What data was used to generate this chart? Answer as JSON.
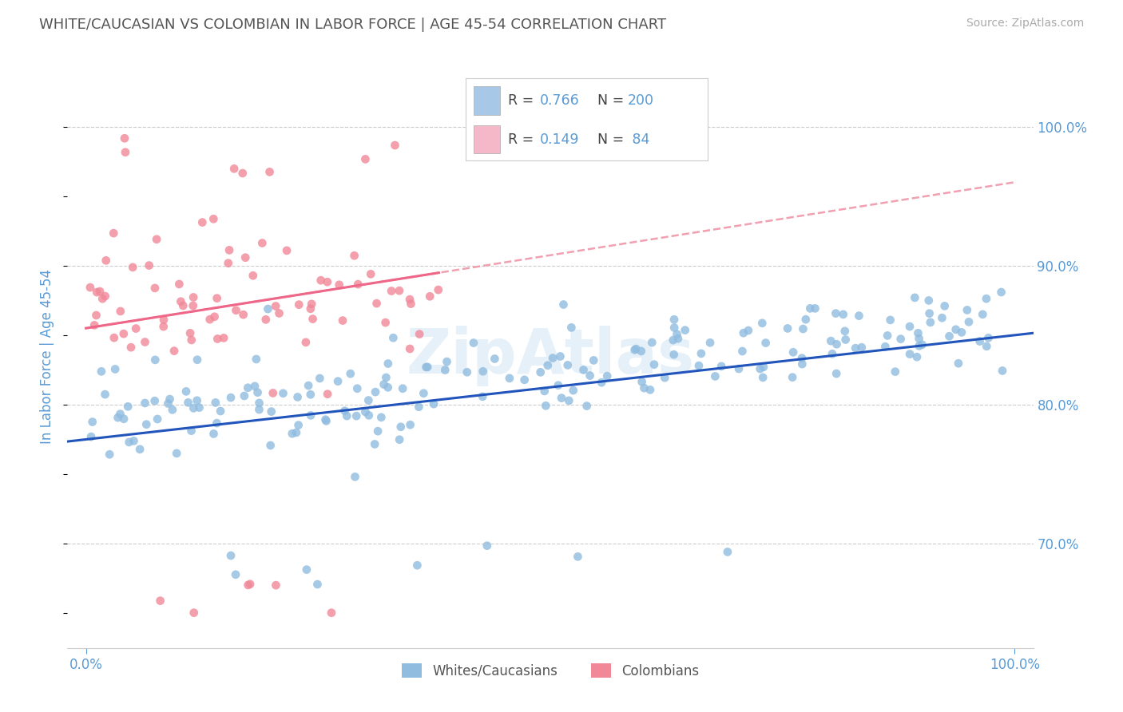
{
  "title": "WHITE/CAUCASIAN VS COLOMBIAN IN LABOR FORCE | AGE 45-54 CORRELATION CHART",
  "source": "Source: ZipAtlas.com",
  "ylabel": "In Labor Force | Age 45-54",
  "watermark": "ZipAtlas",
  "blue_R": 0.766,
  "blue_N": 200,
  "pink_R": 0.149,
  "pink_N": 84,
  "blue_dot_color": "#90bce0",
  "pink_dot_color": "#f08898",
  "blue_line_color": "#2255bb",
  "pink_line_color": "#ee6688",
  "pink_dash_color": "#f0a0b0",
  "right_ytick_values": [
    0.7,
    0.8,
    0.9,
    1.0
  ],
  "ylim": [
    0.625,
    1.045
  ],
  "xlim": [
    -0.02,
    1.02
  ],
  "title_fontsize": 13,
  "axis_label_color": "#5b9bd5",
  "tick_label_color": "#5b9bd5",
  "background_color": "#ffffff",
  "grid_color": "#cccccc",
  "legend_blue_color": "#a8c8e8",
  "legend_pink_color": "#f4b8c8"
}
